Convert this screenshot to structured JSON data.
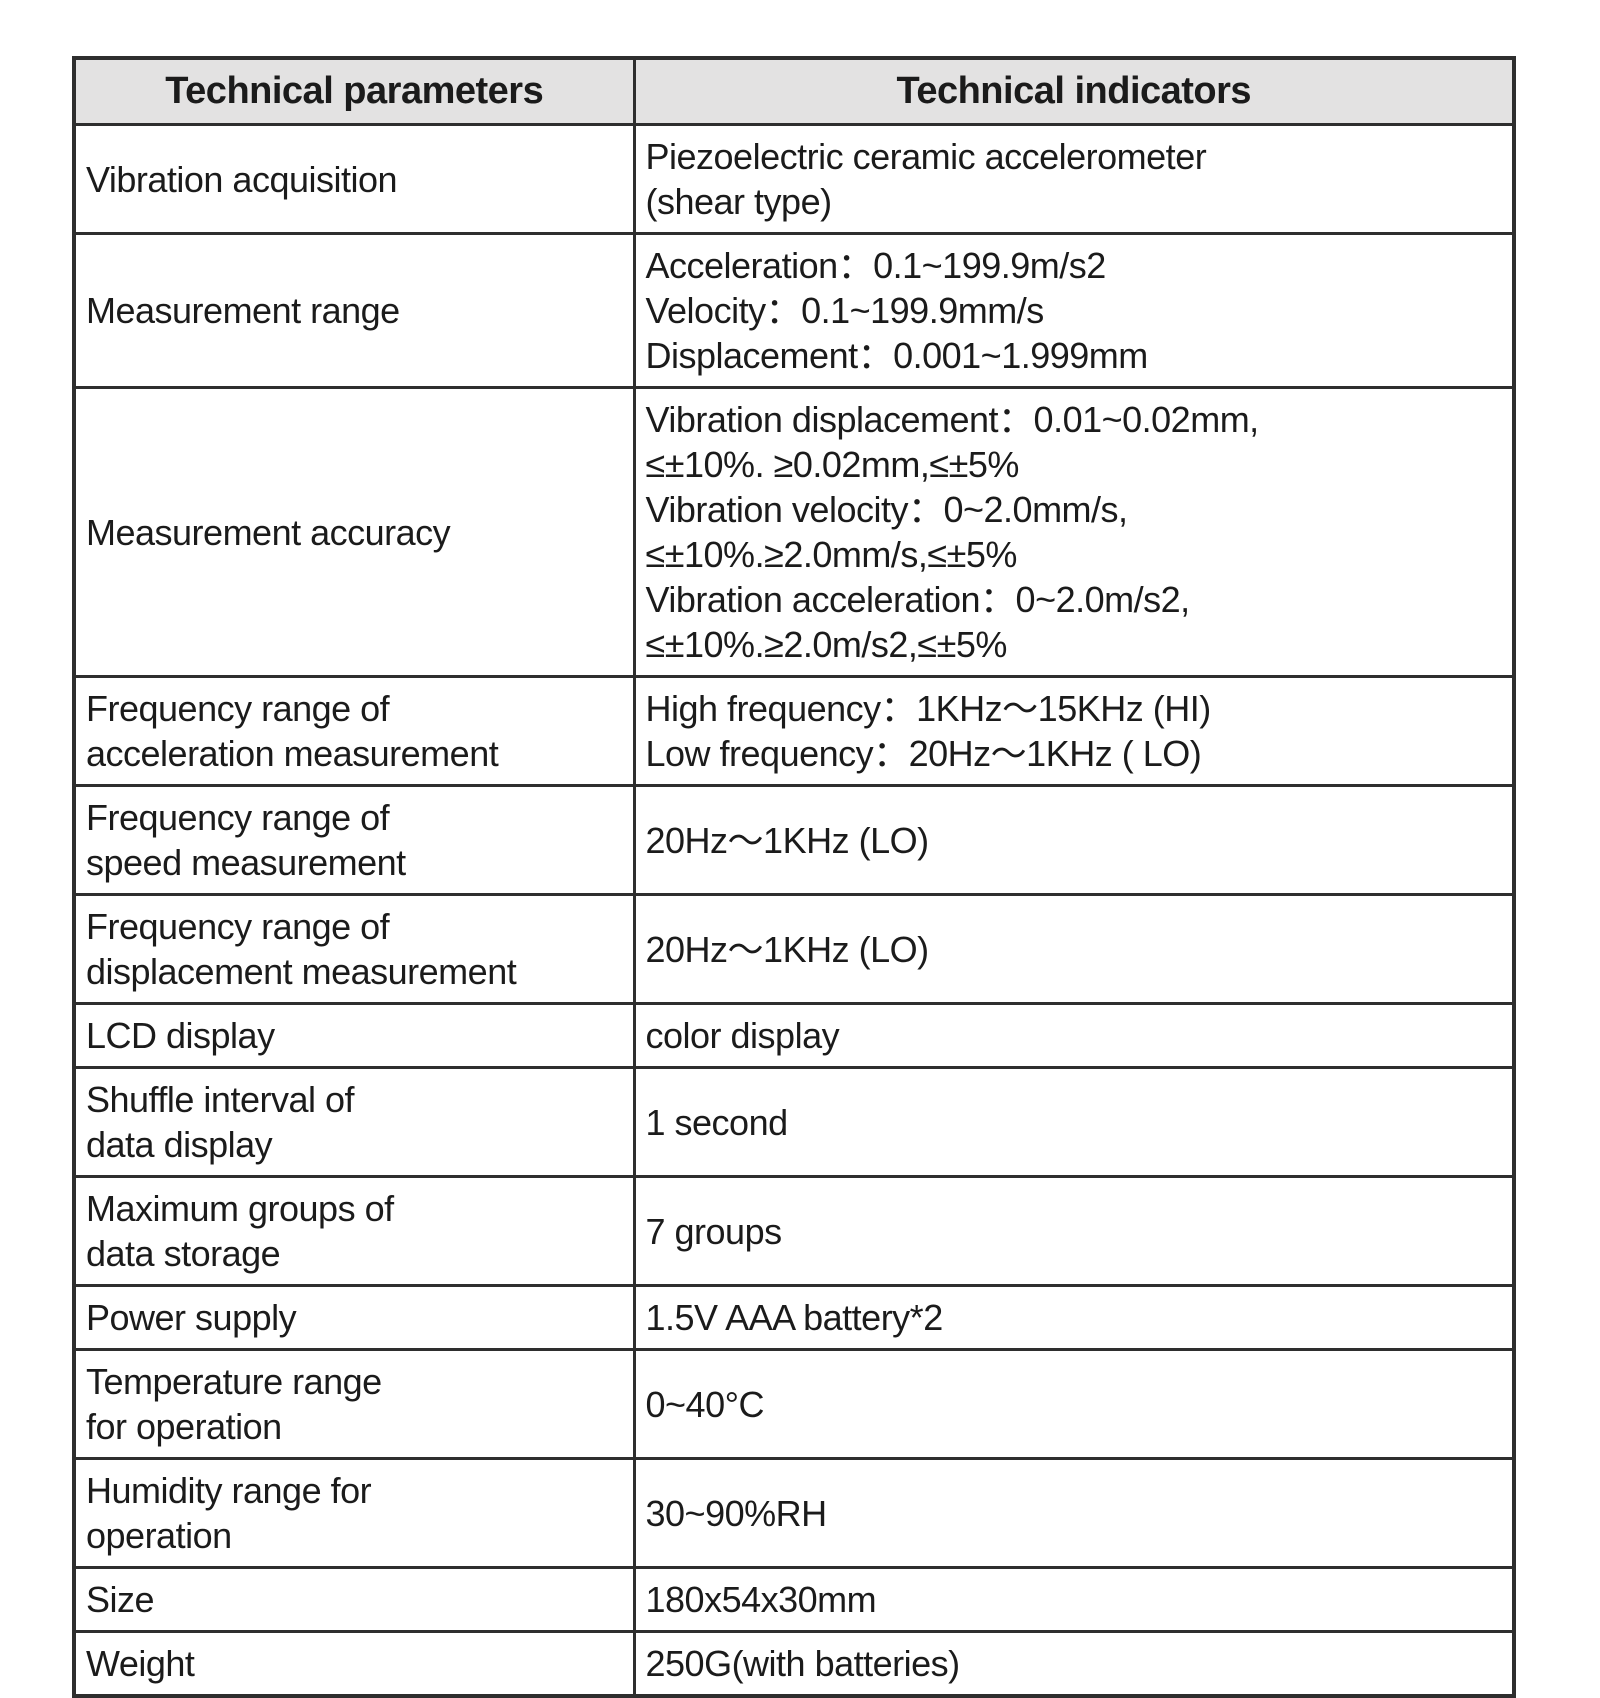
{
  "table": {
    "headers": [
      "Technical parameters",
      "Technical indicators"
    ],
    "rows": [
      {
        "param": "Vibration acquisition",
        "indicator": "Piezoelectric ceramic accelerometer\n(shear type)"
      },
      {
        "param": "Measurement range",
        "indicator": "Acceleration：0.1~199.9m/s2\nVelocity：0.1~199.9mm/s\nDisplacement：0.001~1.999mm"
      },
      {
        "param": "Measurement accuracy",
        "indicator": "Vibration displacement：0.01~0.02mm,\n≤±10%. ≥0.02mm,≤±5%\nVibration velocity：0~2.0mm/s,\n≤±10%.≥2.0mm/s,≤±5%\nVibration acceleration：0~2.0m/s2,\n≤±10%.≥2.0m/s2,≤±5%"
      },
      {
        "param": "Frequency range of\nacceleration measurement",
        "indicator": "High frequency：1KHz～15KHz (HI)\nLow frequency：20Hz～1KHz ( LO)"
      },
      {
        "param": "Frequency range of\nspeed measurement",
        "indicator": "20Hz～1KHz (LO)"
      },
      {
        "param": "Frequency range of\ndisplacement measurement",
        "indicator": "20Hz～1KHz (LO)"
      },
      {
        "param": "LCD display",
        "indicator": "color display"
      },
      {
        "param": "Shuffle interval of\ndata display",
        "indicator": "1 second"
      },
      {
        "param": "Maximum groups of\ndata storage",
        "indicator": "7 groups"
      },
      {
        "param": "Power supply",
        "indicator": "1.5V AAA battery*2"
      },
      {
        "param": "Temperature range\nfor operation",
        "indicator": "0~40°C"
      },
      {
        "param": "Humidity range for\noperation",
        "indicator": "30~90%RH"
      },
      {
        "param": "Size",
        "indicator": "180x54x30mm"
      },
      {
        "param": "Weight",
        "indicator": "250G(with batteries)"
      }
    ]
  }
}
